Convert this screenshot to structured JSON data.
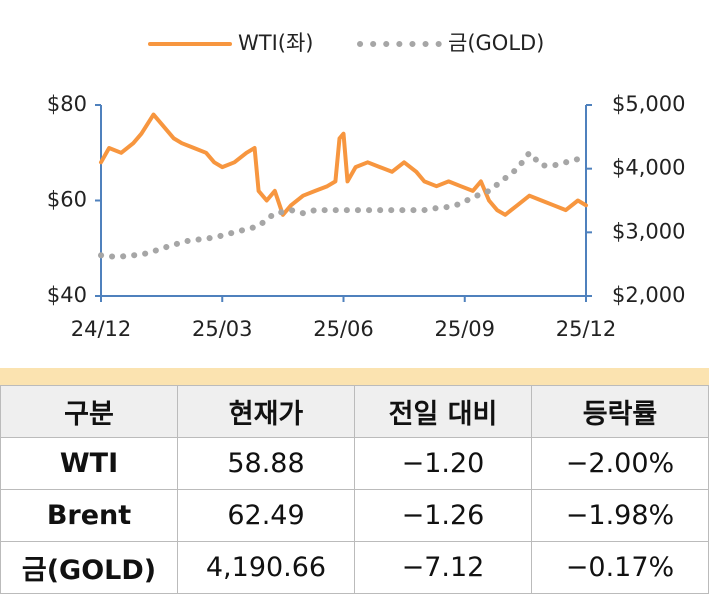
{
  "chart_data": {
    "type": "line",
    "x": [
      0,
      0.2,
      0.5,
      0.8,
      1.0,
      1.3,
      1.5,
      1.8,
      2.0,
      2.3,
      2.6,
      2.8,
      3.0,
      3.3,
      3.6,
      3.8,
      3.9,
      4.1,
      4.3,
      4.5,
      4.7,
      5.0,
      5.3,
      5.6,
      5.8,
      5.9,
      6.0,
      6.1,
      6.3,
      6.6,
      6.9,
      7.2,
      7.5,
      7.8,
      8.0,
      8.3,
      8.6,
      8.9,
      9.2,
      9.4,
      9.6,
      9.8,
      10.0,
      10.3,
      10.6,
      10.9,
      11.2,
      11.5,
      11.8,
      12.0
    ],
    "xlim": [
      0,
      12
    ],
    "xticks": [
      {
        "value": 0,
        "label": "24/12"
      },
      {
        "value": 3,
        "label": "25/03"
      },
      {
        "value": 6,
        "label": "25/06"
      },
      {
        "value": 9,
        "label": "25/09"
      },
      {
        "value": 12,
        "label": "25/12"
      }
    ],
    "ylim": [
      40,
      80
    ],
    "yticks": [
      {
        "value": 40,
        "label": "$40"
      },
      {
        "value": 60,
        "label": "$60"
      },
      {
        "value": 80,
        "label": "$80"
      }
    ],
    "y2lim": [
      2000,
      5000
    ],
    "y2ticks": [
      {
        "value": 2000,
        "label": "$2,000"
      },
      {
        "value": 3000,
        "label": "$3,000"
      },
      {
        "value": 4000,
        "label": "$4,000"
      },
      {
        "value": 5000,
        "label": "$5,000"
      }
    ],
    "series": [
      {
        "name": "WTI(좌)",
        "color": "#f7963f",
        "dashed": false,
        "values": [
          68,
          71,
          70,
          72,
          74,
          78,
          76,
          73,
          72,
          71,
          70,
          68,
          67,
          68,
          70,
          71,
          62,
          60,
          62,
          57,
          59,
          61,
          62,
          63,
          64,
          73,
          74,
          64,
          67,
          68,
          67,
          66,
          68,
          66,
          64,
          63,
          64,
          63,
          62,
          64,
          60,
          58,
          57,
          59,
          61,
          60,
          59,
          58,
          60,
          59
        ]
      },
      {
        "name": "금(GOLD)",
        "color": "#a6a6a6",
        "dashed": true,
        "axis": "y2",
        "values": [
          2640,
          2620,
          2620,
          2640,
          2650,
          2700,
          2750,
          2800,
          2850,
          2880,
          2900,
          2920,
          2950,
          3000,
          3050,
          3080,
          3100,
          3200,
          3300,
          3320,
          3350,
          3300,
          3350,
          3350,
          3350,
          3350,
          3350,
          3350,
          3350,
          3350,
          3350,
          3350,
          3350,
          3350,
          3350,
          3380,
          3400,
          3450,
          3550,
          3600,
          3650,
          3750,
          3850,
          4000,
          4250,
          4050,
          4050,
          4100,
          4150,
          4200
        ]
      }
    ]
  },
  "table": {
    "header": [
      "구분",
      "현재가",
      "전일 대비",
      "등락률"
    ],
    "rows": [
      [
        "WTI",
        "58.88",
        "−1.20",
        "−2.00%"
      ],
      [
        "Brent",
        "62.49",
        "−1.26",
        "−1.98%"
      ],
      [
        "금(GOLD)",
        "4,190.66",
        "−7.12",
        "−0.17%"
      ]
    ]
  }
}
